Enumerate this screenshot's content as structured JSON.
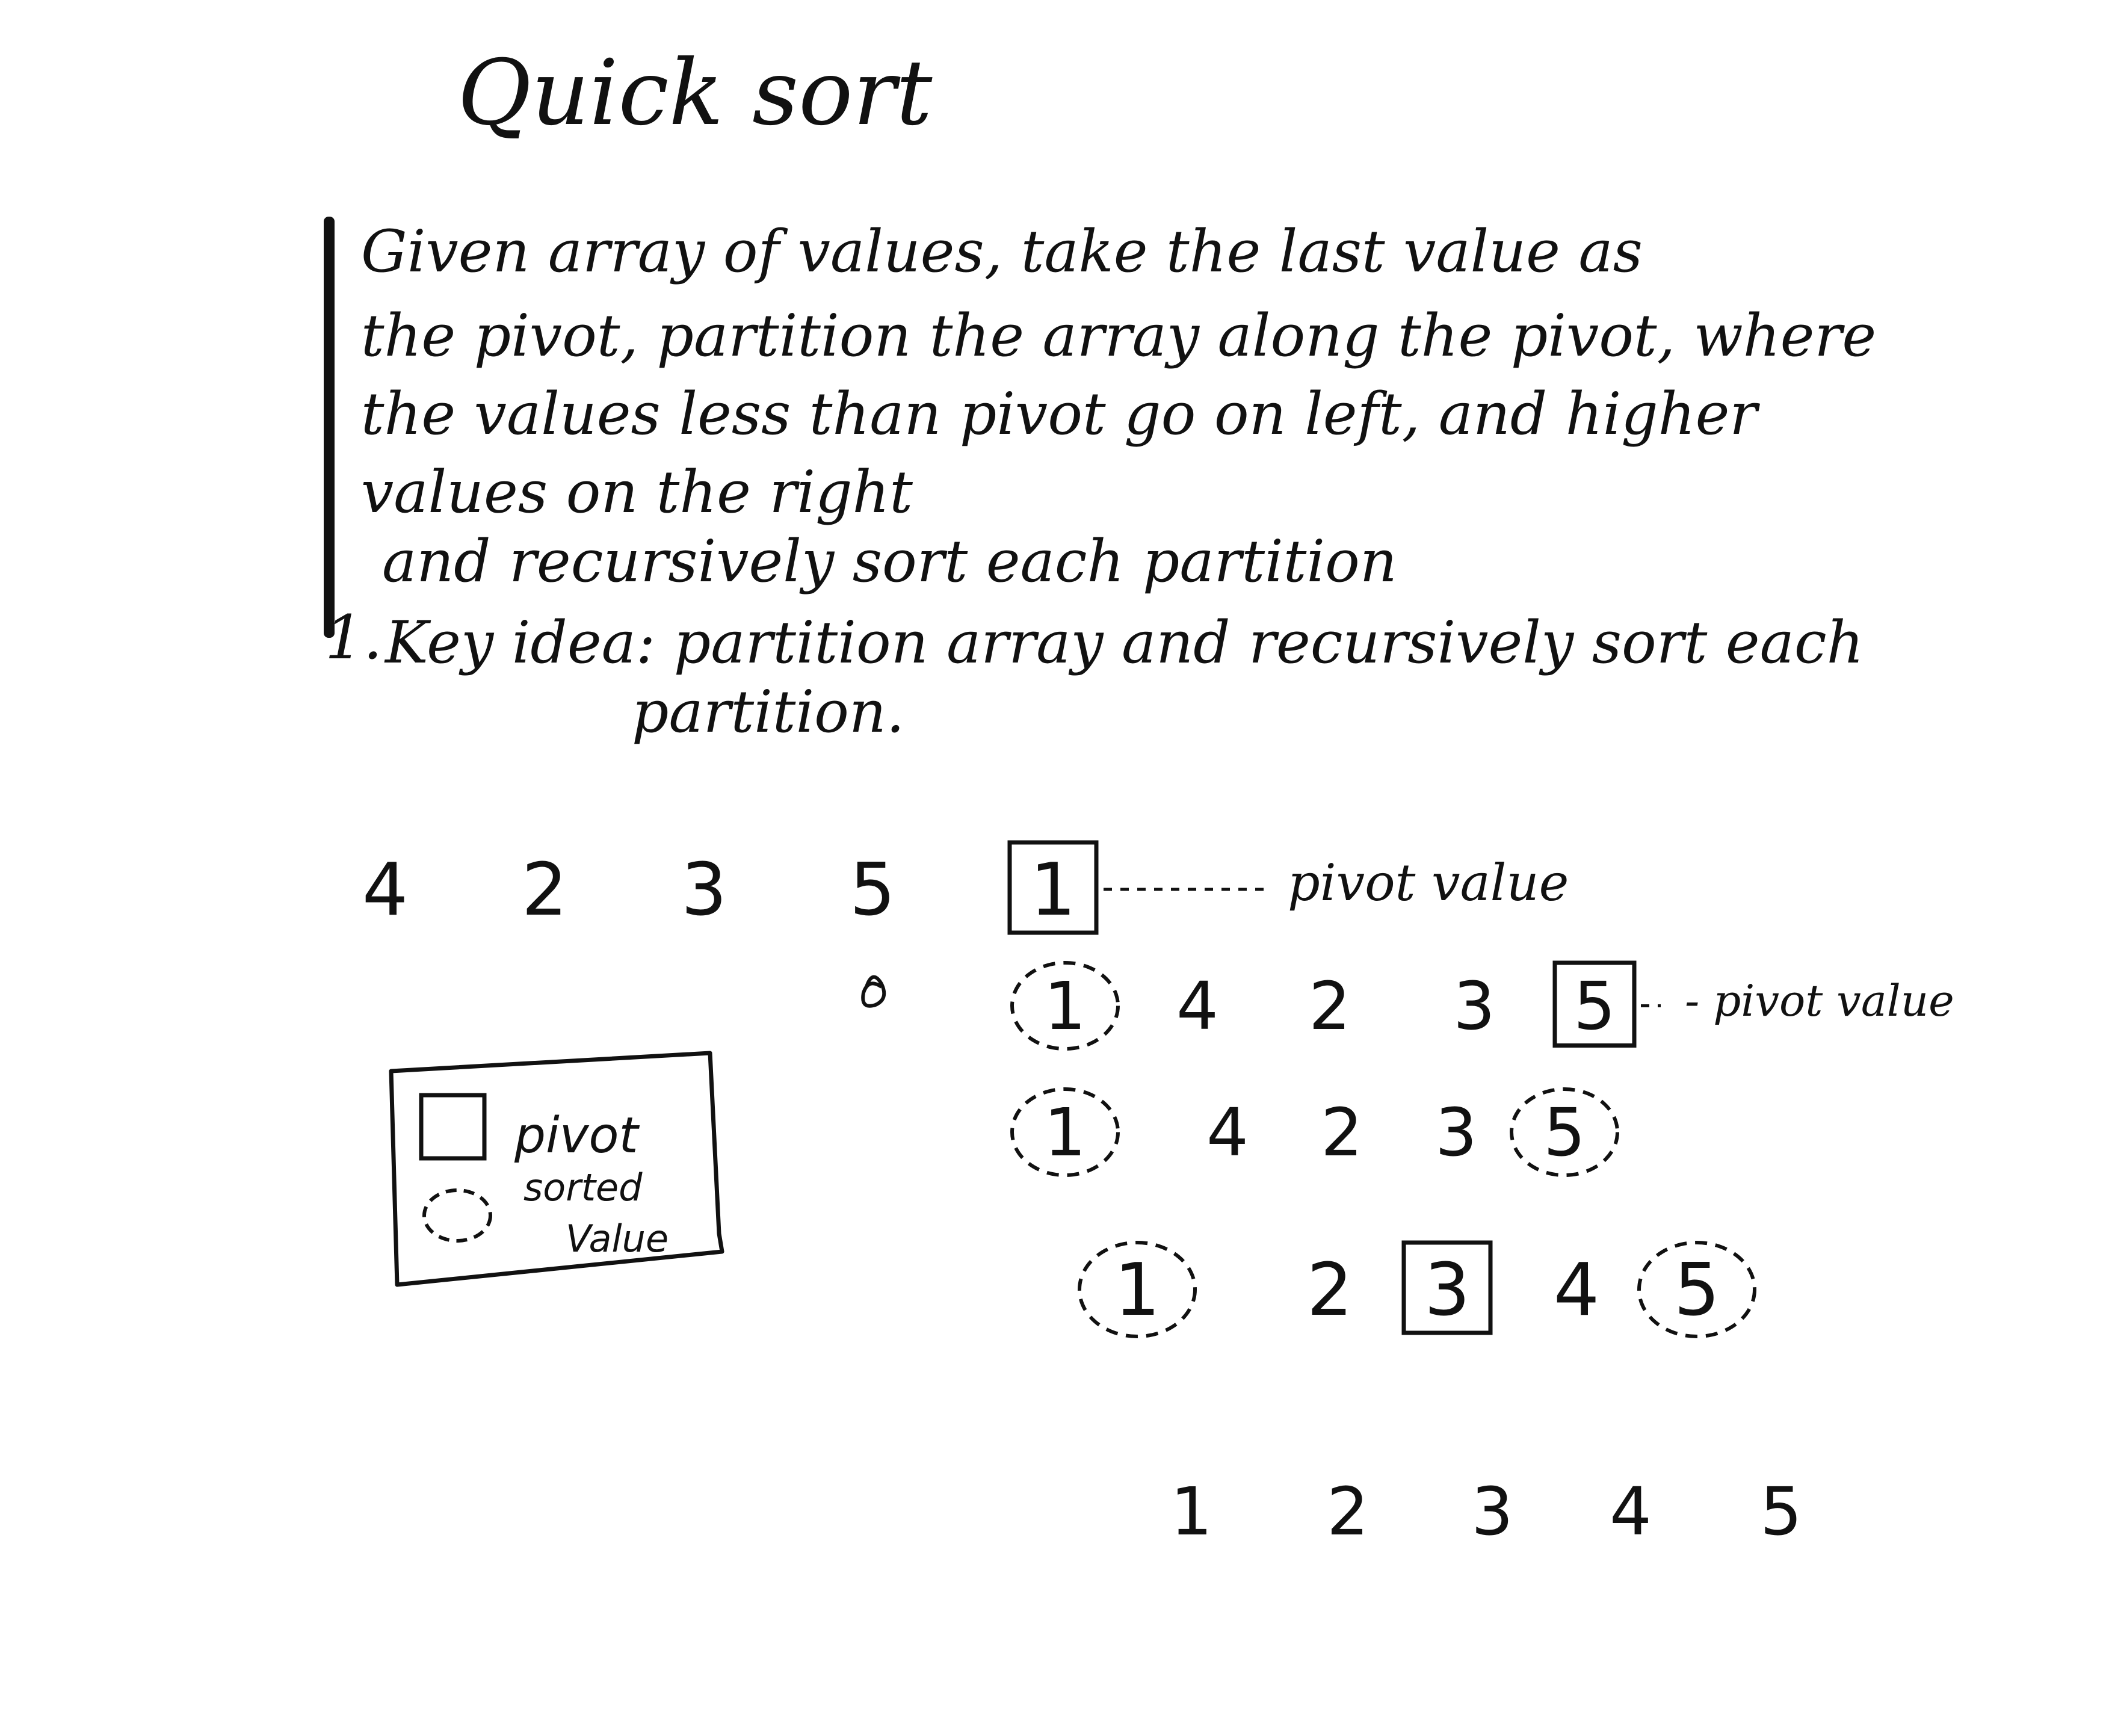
{
  "title": "Quick sort",
  "notes": {
    "lines": [
      "Given array of values, take the last value as",
      "the pivot, partition the array along the pivot, where",
      "the values less than pivot go on left, and higher",
      "values on the right",
      "and recursively sort each partition"
    ]
  },
  "key_idea": {
    "marker": "1.",
    "line1": "Key idea: partition array and recursively sort each",
    "line2": "partition."
  },
  "rows": [
    {
      "values": [
        "4",
        "2",
        "3",
        "5",
        "1"
      ],
      "markers": [
        "none",
        "none",
        "none",
        "none",
        "pivot"
      ],
      "annotation": "pivot value"
    },
    {
      "values": [
        "1",
        "4",
        "2",
        "3",
        "5"
      ],
      "markers": [
        "sorted",
        "none",
        "none",
        "none",
        "pivot"
      ],
      "annotation": "- pivot value"
    },
    {
      "values": [
        "1",
        "4",
        "2",
        "3",
        "5"
      ],
      "markers": [
        "sorted",
        "none",
        "none",
        "none",
        "sorted"
      ],
      "annotation": ""
    },
    {
      "values": [
        "1",
        "2",
        "3",
        "4",
        "5"
      ],
      "markers": [
        "sorted",
        "none",
        "pivot",
        "none",
        "sorted"
      ],
      "annotation": ""
    },
    {
      "values": [
        "1",
        "2",
        "3",
        "4",
        "5"
      ],
      "markers": [
        "none",
        "none",
        "none",
        "none",
        "none"
      ],
      "annotation": ""
    }
  ],
  "legend": {
    "pivot_label": "pivot",
    "sorted_label": "sorted\nValue"
  },
  "colors": {
    "ink": "#111111",
    "paper": "#ffffff"
  }
}
